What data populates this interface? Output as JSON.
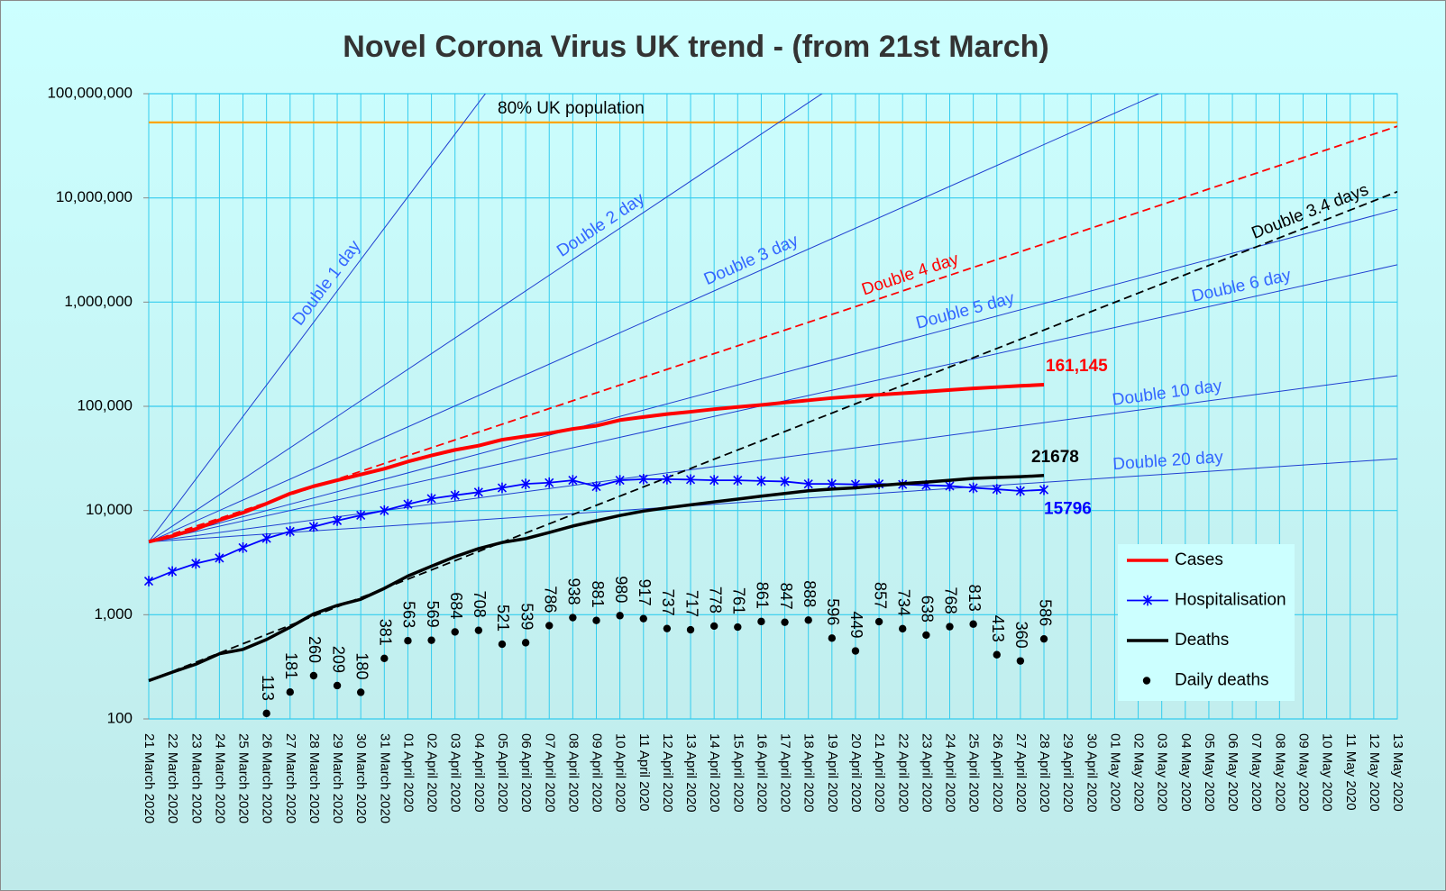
{
  "chart_data": {
    "type": "line",
    "title": "Novel Corona Virus UK trend - (from 21st March)",
    "log_scale": true,
    "grid": true,
    "legend": "lower right",
    "categories": [
      "21 March 2020",
      "22 March 2020",
      "23 March 2020",
      "24 March 2020",
      "25 March 2020",
      "26 March 2020",
      "27 March 2020",
      "28 March 2020",
      "29 March 2020",
      "30 March 2020",
      "31 March 2020",
      "01 April 2020",
      "02 April 2020",
      "03 April 2020",
      "04 April 2020",
      "05 April 2020",
      "06 April 2020",
      "07 April 2020",
      "08 April 2020",
      "09 April 2020",
      "10 April 2020",
      "11 April 2020",
      "12 April 2020",
      "13 April 2020",
      "14 April 2020",
      "15 April 2020",
      "16 April 2020",
      "17 April 2020",
      "18 April 2020",
      "19 April 2020",
      "20 April 2020",
      "21 April 2020",
      "22 April 2020",
      "23 April 2020",
      "24 April 2020",
      "25 April 2020",
      "26 April 2020",
      "27 April 2020",
      "28 April 2020",
      "29 April 2020",
      "30 April 2020",
      "01 May 2020",
      "02 May 2020",
      "03 May 2020",
      "04 May 2020",
      "05 May 2020",
      "06 May 2020",
      "07 May 2020",
      "08 May 2020",
      "09 May 2020",
      "10 May 2020",
      "11 May 2020",
      "12 May 2020",
      "13 May 2020"
    ],
    "ylim": [
      100,
      100000000
    ],
    "yticks": [
      100,
      {
        "value": 1000,
        "label": "1,000"
      },
      {
        "value": 10000,
        "label": "10,000"
      },
      {
        "value": 100000,
        "label": "100,000"
      },
      {
        "value": 1000000,
        "label": "1,000,000"
      },
      {
        "value": 10000000,
        "label": "10,000,000"
      },
      {
        "value": 100000000,
        "label": "100,000,000"
      }
    ],
    "series": [
      {
        "name": "Cases",
        "color": "#ff0000",
        "style": "line",
        "values": [
          5018,
          5683,
          6650,
          8077,
          9529,
          11658,
          14543,
          17089,
          19522,
          22141,
          25150,
          29474,
          33718,
          38168,
          41903,
          47806,
          51608,
          55242,
          60733,
          65077,
          73758,
          78991,
          84279,
          88621,
          93873,
          98476,
          103093,
          108692,
          114217,
          120067,
          124743,
          129044,
          133495,
          138078,
          143464,
          148377,
          152840,
          157149,
          161145,
          null,
          null,
          null,
          null,
          null,
          null,
          null,
          null,
          null,
          null,
          null,
          null,
          null,
          null,
          null
        ],
        "value_labels": [
          null,
          null,
          null,
          null,
          null,
          null,
          null,
          null,
          null,
          null,
          null,
          null,
          null,
          null,
          null,
          null,
          null,
          null,
          null,
          null,
          null,
          null,
          null,
          null,
          null,
          null,
          null,
          null,
          null,
          null,
          null,
          null,
          null,
          null,
          null,
          null,
          null,
          null,
          "161,145",
          null,
          null,
          null,
          null,
          null,
          null,
          null,
          null,
          null,
          null,
          null,
          null,
          null,
          null,
          null
        ]
      },
      {
        "name": "Hospitalisation",
        "color": "#0000ff",
        "style": "line-star",
        "values": [
          2100,
          2600,
          3100,
          3500,
          4400,
          5400,
          6300,
          7000,
          8000,
          9000,
          10000,
          11500,
          13000,
          14000,
          15000,
          16500,
          18000,
          18500,
          19500,
          17000,
          19500,
          20000,
          20000,
          19800,
          19500,
          19500,
          19200,
          19000,
          18000,
          18000,
          17800,
          18000,
          17800,
          17500,
          17200,
          16500,
          16000,
          15400,
          15796,
          null,
          null,
          null,
          null,
          null,
          null,
          null,
          null,
          null,
          null,
          null,
          null,
          null,
          null,
          null
        ]
      },
      {
        "name": "Deaths",
        "color": "#000000",
        "style": "line",
        "values": [
          233,
          281,
          335,
          422,
          465,
          578,
          759,
          1019,
          1228,
          1408,
          1789,
          2352,
          2921,
          3605,
          4313,
          4934,
          5373,
          6159,
          7097,
          7978,
          8958,
          9875,
          10612,
          11329,
          12107,
          12868,
          13729,
          14576,
          15464,
          16060,
          16509,
          17337,
          18100,
          18738,
          19506,
          20319,
          20732,
          21092,
          21678,
          null,
          null,
          null,
          null,
          null,
          null,
          null,
          null,
          null,
          null,
          null,
          null,
          null,
          null,
          null
        ]
      },
      {
        "name": "Daily deaths",
        "color": "#000000",
        "style": "dots",
        "values": [
          null,
          null,
          null,
          null,
          null,
          113,
          181,
          260,
          209,
          180,
          381,
          563,
          569,
          684,
          708,
          521,
          539,
          786,
          938,
          881,
          980,
          917,
          737,
          717,
          778,
          761,
          861,
          847,
          888,
          596,
          449,
          857,
          734,
          638,
          768,
          813,
          413,
          360,
          586,
          null,
          null,
          null,
          null,
          null,
          null,
          null,
          null,
          null,
          null,
          null,
          null,
          null,
          null,
          null
        ]
      }
    ],
    "reference_lines": [
      {
        "name": "Double 1 day",
        "start": 5000,
        "doubling_days": 1,
        "color": "#1f3fd0",
        "label_color": "#3366ff",
        "dashed": false
      },
      {
        "name": "Double 2 day",
        "start": 5000,
        "doubling_days": 2,
        "color": "#1f3fd0",
        "label_color": "#3366ff",
        "dashed": false
      },
      {
        "name": "Double 3 day",
        "start": 5000,
        "doubling_days": 3,
        "color": "#1f3fd0",
        "label_color": "#3366ff",
        "dashed": false
      },
      {
        "name": "Double 4 day",
        "start": 5000,
        "doubling_days": 4,
        "color": "#ff0000",
        "label_color": "#ff0000",
        "dashed": true
      },
      {
        "name": "Double 5 day",
        "start": 5000,
        "doubling_days": 5,
        "color": "#1f3fd0",
        "label_color": "#3366ff",
        "dashed": false
      },
      {
        "name": "Double 6 day",
        "start": 5000,
        "doubling_days": 6,
        "color": "#1f3fd0",
        "label_color": "#3366ff",
        "dashed": false
      },
      {
        "name": "Double 10 day",
        "start": 5000,
        "doubling_days": 10,
        "color": "#1f3fd0",
        "label_color": "#3366ff",
        "dashed": false
      },
      {
        "name": "Double 20 day",
        "start": 5000,
        "doubling_days": 20,
        "color": "#1f3fd0",
        "label_color": "#3366ff",
        "dashed": false
      },
      {
        "name": "Double 3.4 days",
        "start": 233,
        "doubling_days": 3.4,
        "color": "#000000",
        "label_color": "#000000",
        "dashed": true
      }
    ],
    "hlines": [
      {
        "name": "80% UK population",
        "value": 53000000,
        "color": "#ffa500"
      }
    ]
  }
}
